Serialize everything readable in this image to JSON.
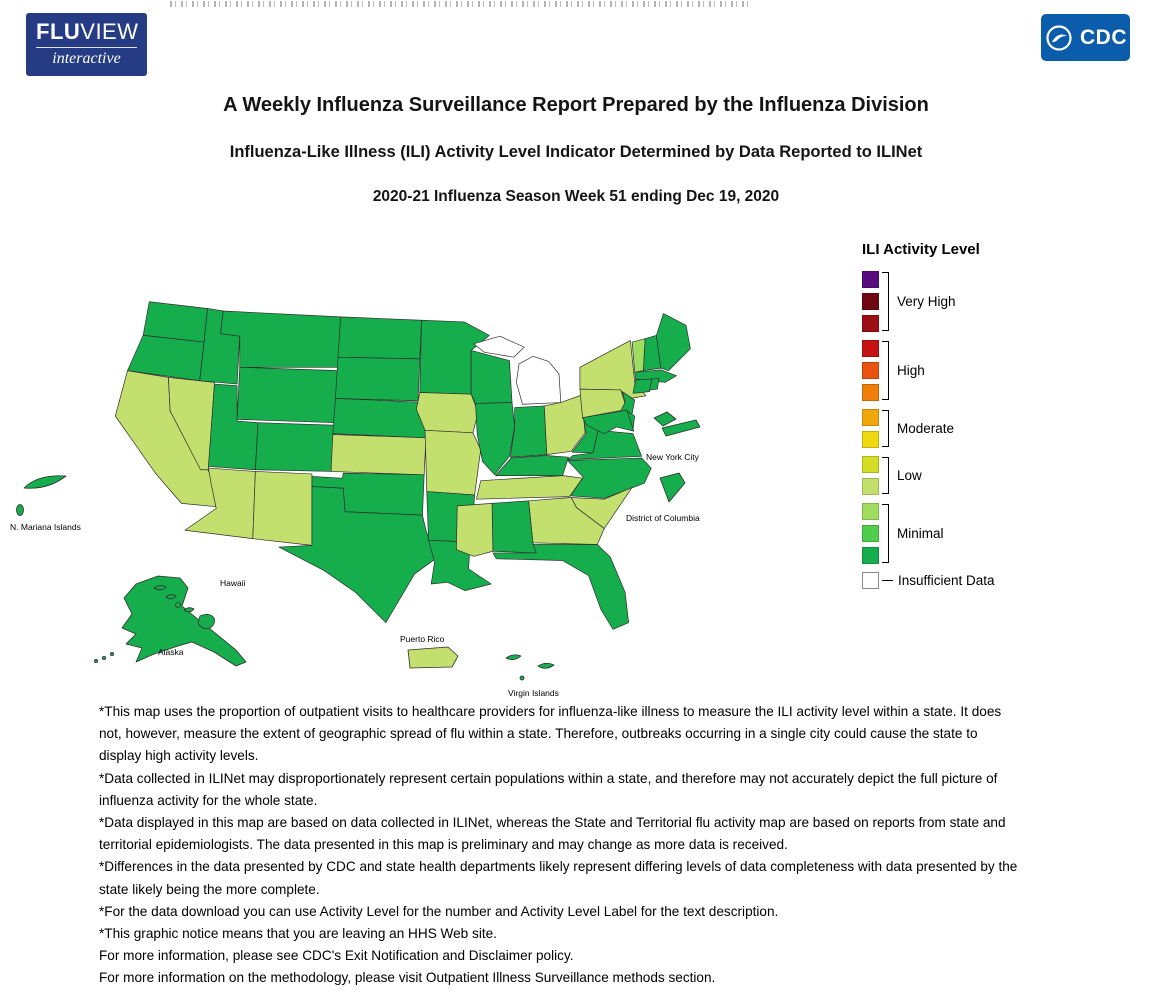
{
  "header": {
    "fluview_logo": {
      "bold": "FLU",
      "light": "VIEW",
      "sub": "interactive"
    },
    "cdc_logo_text": "CDC"
  },
  "titles": {
    "line1": "A Weekly Influenza Surveillance Report Prepared by the Influenza Division",
    "line2": "Influenza-Like Illness (ILI) Activity Level Indicator Determined by Data Reported to ILINet",
    "line3": "2020-21 Influenza Season Week 51 ending Dec 19, 2020"
  },
  "legend": {
    "title": "ILI Activity Level",
    "groups": [
      {
        "label": "Very High",
        "colors": [
          "#570b7d",
          "#6f0712",
          "#9c0e13"
        ]
      },
      {
        "label": "High",
        "colors": [
          "#c41310",
          "#e9530e",
          "#f07f09"
        ]
      },
      {
        "label": "Moderate",
        "colors": [
          "#efa90a",
          "#eeda0f"
        ]
      },
      {
        "label": "Low",
        "colors": [
          "#d5dd25",
          "#c3df6d"
        ]
      },
      {
        "label": "Minimal",
        "colors": [
          "#9edd5f",
          "#4fce4c",
          "#16ad4c"
        ]
      }
    ],
    "insufficient": {
      "label": "Insufficient Data",
      "color": "#ffffff"
    }
  },
  "map": {
    "labels": {
      "mariana": "N. Mariana Islands",
      "hawaii": "Hawaii",
      "alaska": "Alaska",
      "pr": "Puerto Rico",
      "vi": "Virgin Islands",
      "nyc": "New York City",
      "dc": "District of Columbia"
    },
    "fill_colors": {
      "g": "#16ad4c",
      "l": "#c3df6d",
      "m": "#9edd5f",
      "w": "#ffffff"
    },
    "state_levels": {
      "WA": "g",
      "OR": "g",
      "CA": "l",
      "NV": "l",
      "ID": "g",
      "MT": "g",
      "WY": "g",
      "UT": "g",
      "CO": "g",
      "AZ": "l",
      "NM": "l",
      "ND": "g",
      "SD": "g",
      "NE": "g",
      "KS": "l",
      "OK": "g",
      "TX": "g",
      "MN": "g",
      "IA": "l",
      "MO": "l",
      "AR": "g",
      "LA": "g",
      "WI": "g",
      "IL": "g",
      "MI": "w",
      "IN": "g",
      "OH": "l",
      "KY": "g",
      "TN": "l",
      "WV": "g",
      "VA": "g",
      "NC": "g",
      "SC": "l",
      "GA": "l",
      "AL": "g",
      "MS": "l",
      "FL": "g",
      "NY": "l",
      "PA": "l",
      "NJ": "g",
      "VT": "m",
      "NH": "g",
      "ME": "g",
      "MA": "g",
      "CT": "g",
      "RI": "g",
      "DE": "g",
      "MD": "g",
      "NYC": "g",
      "DC": "g",
      "AK": "g",
      "HI": "g",
      "PR": "l",
      "VI": "g",
      "MP": "g"
    }
  },
  "footnotes": [
    "*This map uses the proportion of outpatient visits to healthcare providers for influenza-like illness to measure the ILI activity level within a state. It does not, however, measure the extent of geographic spread of flu within a state. Therefore, outbreaks occurring in a single city could cause the state to display high activity levels.",
    "*Data collected in ILINet may disproportionately represent certain populations within a state, and therefore may not accurately depict the full picture of influenza activity for the whole state.",
    "*Data displayed in this map are based on data collected in ILINet, whereas the State and Territorial flu activity map are based on reports from state and territorial epidemiologists. The data presented in this map is preliminary and may change as more data is received.",
    "*Differences in the data presented by CDC and state health departments likely represent differing levels of data completeness with data presented by the state likely being the more complete.",
    "*For the data download you can use Activity Level for the number and Activity Level Label for the text description.",
    "*This graphic notice means that you are leaving an HHS Web site.",
    "For more information, please see CDC's Exit Notification and Disclaimer policy.",
    "For more information on the methodology, please visit Outpatient Illness Surveillance methods section."
  ]
}
